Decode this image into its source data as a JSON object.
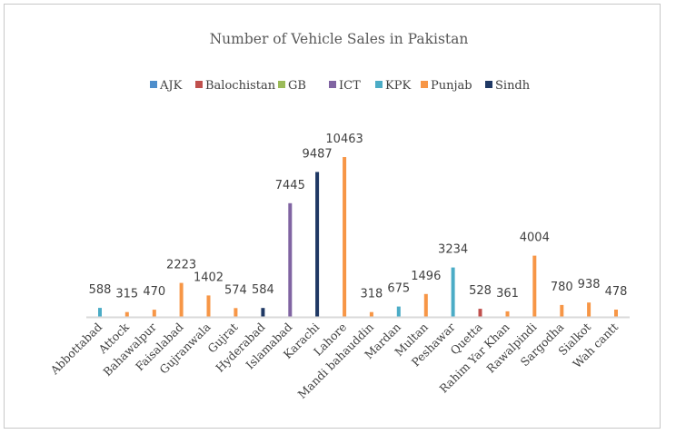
{
  "chart_data": {
    "type": "bar",
    "title": "Number of Vehicle Sales in Pakistan",
    "xlabel": "",
    "ylabel": "",
    "ylim": [
      0,
      10463
    ],
    "grid": false,
    "legend_position": "top",
    "legend": [
      {
        "name": "AJK",
        "color": "#4e8ecb"
      },
      {
        "name": "Balochistan",
        "color": "#c0504d"
      },
      {
        "name": "GB",
        "color": "#9bbb59"
      },
      {
        "name": "ICT",
        "color": "#8064a2"
      },
      {
        "name": "KPK",
        "color": "#4bacc6"
      },
      {
        "name": "Punjab",
        "color": "#f79646"
      },
      {
        "name": "Sindh",
        "color": "#1f3864"
      }
    ],
    "categories": [
      "Abbottabad",
      "Attock",
      "Bahawalpur",
      "Faisalabad",
      "Gujranwala",
      "Gujrat",
      "Hyderabad",
      "Islamabad",
      "Karachi",
      "Lahore",
      "Mandi bahauddin",
      "Mardan",
      "Multan",
      "Peshawar",
      "Quetta",
      "Rahim Yar Khan",
      "Rawalpindi",
      "Sargodha",
      "Sialkot",
      "Wah cantt"
    ],
    "points": [
      {
        "category": "Abbottabad",
        "value": 588,
        "series": "KPK",
        "label": "588"
      },
      {
        "category": "Attock",
        "value": 315,
        "series": "Punjab",
        "label": "315"
      },
      {
        "category": "Bahawalpur",
        "value": 470,
        "series": "Punjab",
        "label": "470"
      },
      {
        "category": "Faisalabad",
        "value": 2223,
        "series": "Punjab",
        "label": "2223"
      },
      {
        "category": "Gujranwala",
        "value": 1402,
        "series": "Punjab",
        "label": "1402"
      },
      {
        "category": "Gujrat",
        "value": 574,
        "series": "Punjab",
        "label": "574"
      },
      {
        "category": "Hyderabad",
        "value": 584,
        "series": "Sindh",
        "label": "584"
      },
      {
        "category": "Islamabad",
        "value": 7445,
        "series": "ICT",
        "label": "7445"
      },
      {
        "category": "Karachi",
        "value": 9487,
        "series": "Sindh",
        "label": "9487"
      },
      {
        "category": "Lahore",
        "value": 10463,
        "series": "Punjab",
        "label": "10463"
      },
      {
        "category": "Mandi bahauddin",
        "value": 318,
        "series": "Punjab",
        "label": "318"
      },
      {
        "category": "Mardan",
        "value": 675,
        "series": "KPK",
        "label": "675"
      },
      {
        "category": "Multan",
        "value": 1496,
        "series": "Punjab",
        "label": "1496"
      },
      {
        "category": "Peshawar",
        "value": 3234,
        "series": "KPK",
        "label": "3234"
      },
      {
        "category": "Quetta",
        "value": 528,
        "series": "Balochistan",
        "label": "528"
      },
      {
        "category": "Rahim Yar Khan",
        "value": 361,
        "series": "Punjab",
        "label": "361"
      },
      {
        "category": "Rawalpindi",
        "value": 4004,
        "series": "Punjab",
        "label": "4004"
      },
      {
        "category": "Sargodha",
        "value": 780,
        "series": "Punjab",
        "label": "780"
      },
      {
        "category": "Sialkot",
        "value": 938,
        "series": "Punjab",
        "label": "938"
      },
      {
        "category": "Wah cantt",
        "value": 478,
        "series": "Punjab",
        "label": "478"
      }
    ],
    "axis_color": "#d9d9d9"
  }
}
